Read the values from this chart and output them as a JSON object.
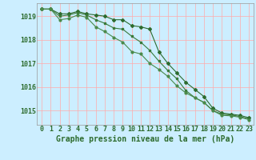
{
  "title": "Graphe pression niveau de la mer (hPa)",
  "background_color": "#cceeff",
  "plot_background_color": "#cceeff",
  "grid_color": "#ffaaaa",
  "line_color": "#2d6b2d",
  "x_labels": [
    "0",
    "1",
    "2",
    "3",
    "4",
    "5",
    "6",
    "7",
    "8",
    "9",
    "10",
    "11",
    "12",
    "13",
    "14",
    "15",
    "16",
    "17",
    "18",
    "19",
    "20",
    "21",
    "22",
    "23"
  ],
  "ylim": [
    1014.4,
    1019.55
  ],
  "yticks": [
    1015,
    1016,
    1017,
    1018,
    1019
  ],
  "series1": [
    1019.3,
    1019.3,
    1019.1,
    1019.1,
    1019.2,
    1019.1,
    1019.05,
    1019.0,
    1018.85,
    1018.85,
    1018.6,
    1018.55,
    1018.45,
    1017.5,
    1017.0,
    1016.6,
    1016.2,
    1015.9,
    1015.6,
    1015.1,
    1014.9,
    1014.85,
    1014.8,
    1014.7
  ],
  "series2": [
    1019.3,
    1019.3,
    1019.0,
    1019.05,
    1019.15,
    1019.05,
    1018.85,
    1018.7,
    1018.5,
    1018.45,
    1018.15,
    1017.9,
    1017.55,
    1017.1,
    1016.7,
    1016.35,
    1015.85,
    1015.55,
    1015.35,
    1015.0,
    1014.85,
    1014.82,
    1014.75,
    1014.65
  ],
  "series3": [
    1019.3,
    1019.3,
    1018.85,
    1018.9,
    1019.05,
    1018.95,
    1018.55,
    1018.35,
    1018.1,
    1017.9,
    1017.5,
    1017.4,
    1017.0,
    1016.75,
    1016.45,
    1016.05,
    1015.75,
    1015.55,
    1015.35,
    1015.0,
    1014.8,
    1014.78,
    1014.72,
    1014.62
  ],
  "title_fontsize": 7,
  "tick_fontsize": 6,
  "marker_size": 2,
  "line_width": 0.8
}
